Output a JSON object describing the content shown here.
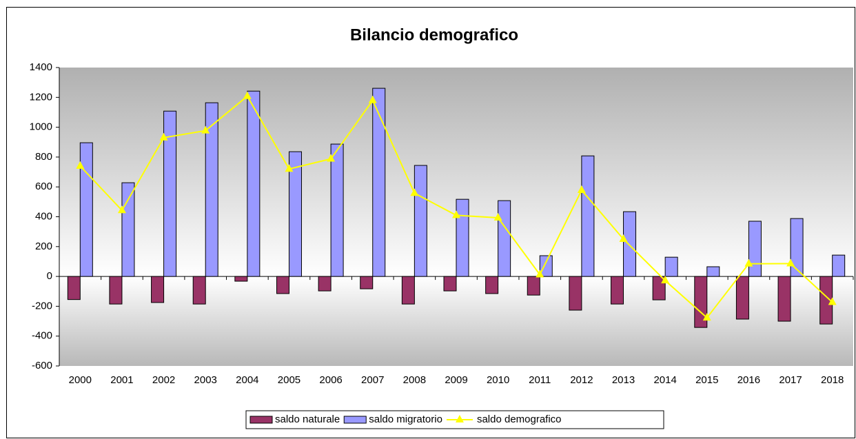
{
  "chart_data": {
    "type": "bar-line",
    "title": "Bilancio demografico",
    "categories": [
      "2000",
      "2001",
      "2002",
      "2003",
      "2004",
      "2005",
      "2006",
      "2007",
      "2008",
      "2009",
      "2010",
      "2011",
      "2012",
      "2013",
      "2014",
      "2015",
      "2016",
      "2017",
      "2018"
    ],
    "series": [
      {
        "name": "saldo naturale",
        "type": "bar",
        "color": "#993366",
        "values": [
          -155,
          -185,
          -175,
          -185,
          -32,
          -115,
          -97,
          -83,
          -185,
          -97,
          -115,
          -125,
          -226,
          -185,
          -157,
          -342,
          -286,
          -300,
          -319
        ]
      },
      {
        "name": "saldo migratorio",
        "type": "bar",
        "color": "#9999ff",
        "values": [
          896,
          628,
          1108,
          1164,
          1242,
          836,
          887,
          1261,
          744,
          517,
          508,
          139,
          808,
          434,
          129,
          65,
          370,
          388,
          143
        ]
      },
      {
        "name": "saldo demografico",
        "type": "line",
        "color": "#ffff00",
        "values": [
          740,
          443,
          930,
          977,
          1208,
          720,
          788,
          1180,
          558,
          410,
          393,
          12,
          578,
          250,
          -28,
          -277,
          85,
          86,
          -173
        ]
      }
    ],
    "ylim": [
      -600,
      1400
    ],
    "yticks": [
      -600,
      -400,
      -200,
      0,
      200,
      400,
      600,
      800,
      1000,
      1200,
      1400
    ],
    "legend": "bottom"
  }
}
